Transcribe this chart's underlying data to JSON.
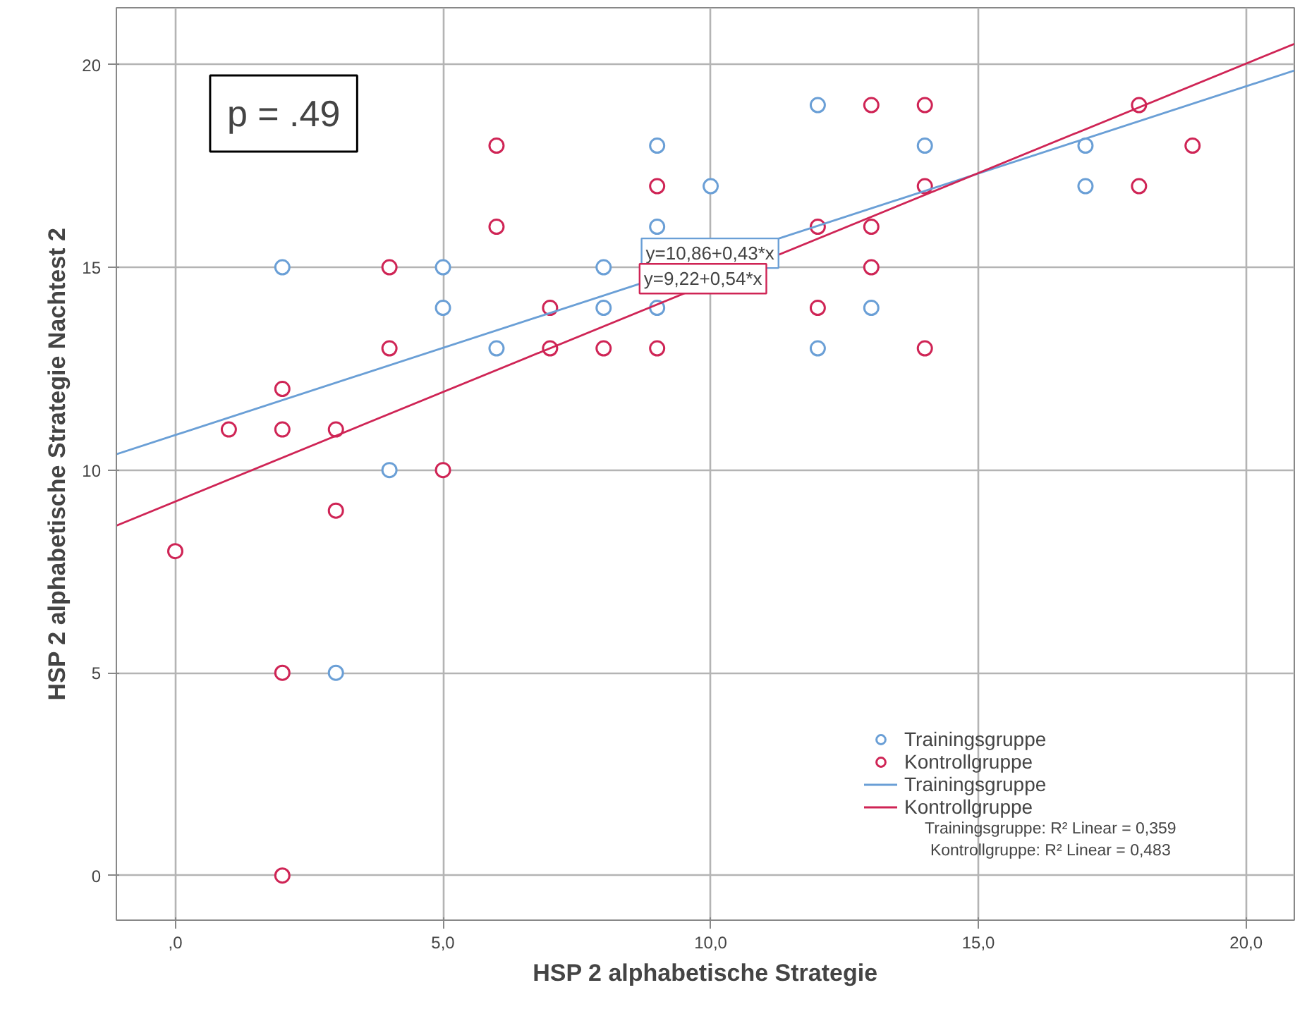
{
  "chart_data": {
    "type": "scatter",
    "xlabel": "HSP 2 alphabetische Strategie",
    "ylabel": "HSP 2 alphabetische Strategie Nachtest 2",
    "xlim": [
      -1.1,
      20.9
    ],
    "ylim": [
      -1.1,
      21.4
    ],
    "xticks": [
      {
        "value": 0,
        "label": ",0"
      },
      {
        "value": 5,
        "label": "5,0"
      },
      {
        "value": 10,
        "label": "10,0"
      },
      {
        "value": 15,
        "label": "15,0"
      },
      {
        "value": 20,
        "label": "20,0"
      }
    ],
    "yticks": [
      0,
      5,
      10,
      15,
      20
    ],
    "grid": true,
    "legend": "bottom right",
    "marker": "circle",
    "line_style": "solid",
    "series": [
      {
        "name": "Trainingsgruppe",
        "color": "#6a9fd6",
        "x": [
          2,
          5,
          5,
          4,
          3,
          6,
          8,
          8,
          9,
          9,
          9,
          10,
          12,
          12,
          13,
          14,
          17,
          17
        ],
        "values": [
          15,
          15,
          14,
          10,
          5,
          13,
          15,
          14,
          18,
          16,
          14,
          17,
          19,
          13,
          14,
          18,
          18,
          17
        ]
      },
      {
        "name": "Kontrollgruppe",
        "color": "#cf2455",
        "x": [
          0,
          1,
          2,
          2,
          2,
          2,
          3,
          3,
          4,
          4,
          5,
          6,
          6,
          7,
          7,
          8,
          9,
          9,
          12,
          12,
          13,
          13,
          13,
          14,
          14,
          14,
          18,
          18,
          19
        ],
        "values": [
          8,
          11,
          12,
          11,
          5,
          0,
          11,
          9,
          15,
          13,
          10,
          18,
          16,
          14,
          13,
          13,
          17,
          13,
          16,
          14,
          19,
          16,
          15,
          19,
          17,
          13,
          19,
          17,
          18
        ]
      },
      {
        "name": "Trainingsgruppe",
        "color": "#6a9fd6",
        "type": "line",
        "marker": "none",
        "x": [
          -1.1,
          20.9
        ],
        "values": [
          10.39,
          19.85
        ]
      },
      {
        "name": "Kontrollgruppe",
        "color": "#cf2455",
        "type": "line",
        "marker": "none",
        "x": [
          -1.1,
          20.9
        ],
        "values": [
          8.63,
          20.51
        ]
      }
    ],
    "annotations": [
      "p = .49",
      "y=10,86+0,43*x",
      "y=9,22+0,54*x",
      "Trainingsgruppe: R² Linear = 0,359",
      "Kontrollgruppe: R² Linear = 0,483"
    ]
  }
}
